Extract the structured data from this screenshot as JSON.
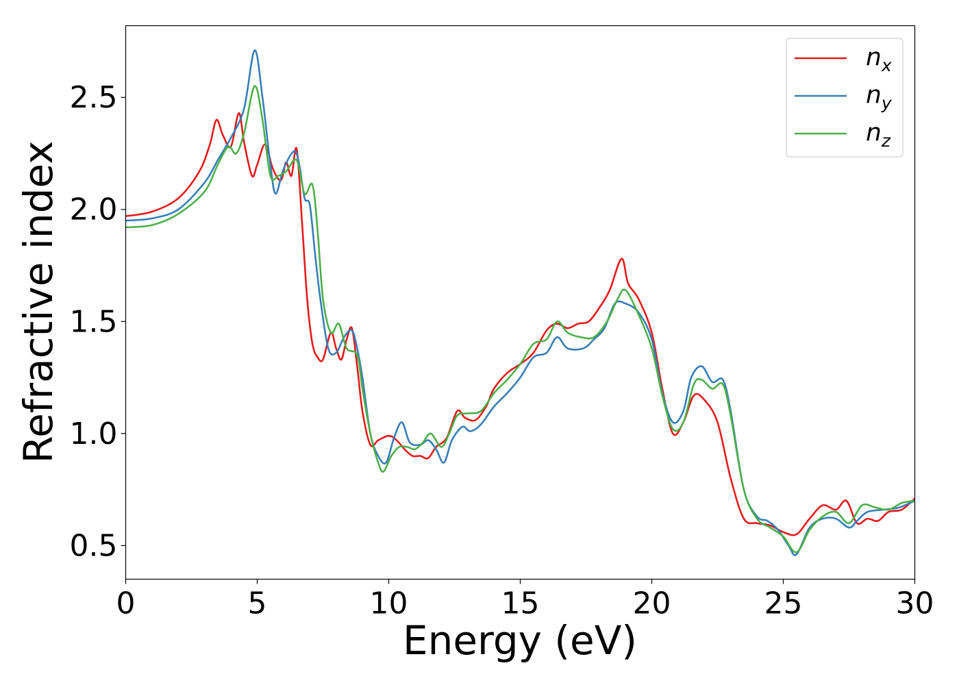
{
  "chart_data": {
    "type": "line",
    "title": "",
    "xlabel": "Energy (eV)",
    "ylabel": "Refractive index",
    "xlim": [
      0,
      30
    ],
    "ylim": [
      0.35,
      2.82
    ],
    "xticks": [
      0,
      5,
      10,
      15,
      20,
      25,
      30
    ],
    "yticks": [
      0.5,
      1.0,
      1.5,
      2.0,
      2.5
    ],
    "xtick_labels": [
      "0",
      "5",
      "10",
      "15",
      "20",
      "25",
      "30"
    ],
    "ytick_labels": [
      "0.5",
      "1.0",
      "1.5",
      "2.0",
      "2.5"
    ],
    "grid": false,
    "legend_position": "top-right",
    "series": [
      {
        "name": "n",
        "subscript": "x",
        "color": "#e41a1c",
        "points": [
          [
            0,
            1.97
          ],
          [
            1,
            1.99
          ],
          [
            2,
            2.05
          ],
          [
            2.8,
            2.17
          ],
          [
            3.2,
            2.29
          ],
          [
            3.45,
            2.4
          ],
          [
            3.7,
            2.33
          ],
          [
            4.0,
            2.28
          ],
          [
            4.3,
            2.43
          ],
          [
            4.5,
            2.3
          ],
          [
            4.8,
            2.15
          ],
          [
            5.0,
            2.2
          ],
          [
            5.3,
            2.29
          ],
          [
            5.6,
            2.18
          ],
          [
            5.9,
            2.13
          ],
          [
            6.1,
            2.21
          ],
          [
            6.3,
            2.15
          ],
          [
            6.5,
            2.27
          ],
          [
            6.7,
            1.95
          ],
          [
            6.9,
            1.6
          ],
          [
            7.1,
            1.4
          ],
          [
            7.3,
            1.34
          ],
          [
            7.5,
            1.33
          ],
          [
            7.8,
            1.45
          ],
          [
            8.0,
            1.38
          ],
          [
            8.2,
            1.33
          ],
          [
            8.4,
            1.42
          ],
          [
            8.6,
            1.47
          ],
          [
            8.8,
            1.3
          ],
          [
            9.0,
            1.1
          ],
          [
            9.3,
            0.95
          ],
          [
            9.6,
            0.97
          ],
          [
            10.0,
            0.99
          ],
          [
            10.3,
            0.97
          ],
          [
            10.6,
            0.93
          ],
          [
            10.9,
            0.9
          ],
          [
            11.2,
            0.9
          ],
          [
            11.5,
            0.89
          ],
          [
            11.8,
            0.94
          ],
          [
            12.2,
            0.98
          ],
          [
            12.6,
            1.1
          ],
          [
            12.9,
            1.07
          ],
          [
            13.3,
            1.06
          ],
          [
            13.7,
            1.12
          ],
          [
            14.0,
            1.2
          ],
          [
            14.5,
            1.27
          ],
          [
            15.0,
            1.31
          ],
          [
            15.5,
            1.36
          ],
          [
            16.0,
            1.46
          ],
          [
            16.4,
            1.49
          ],
          [
            16.8,
            1.47
          ],
          [
            17.2,
            1.49
          ],
          [
            17.6,
            1.5
          ],
          [
            18.0,
            1.56
          ],
          [
            18.4,
            1.64
          ],
          [
            18.85,
            1.78
          ],
          [
            19.1,
            1.67
          ],
          [
            19.5,
            1.6
          ],
          [
            20.0,
            1.45
          ],
          [
            20.4,
            1.2
          ],
          [
            20.8,
            1.0
          ],
          [
            21.2,
            1.05
          ],
          [
            21.6,
            1.17
          ],
          [
            22.0,
            1.15
          ],
          [
            22.5,
            1.05
          ],
          [
            23.0,
            0.8
          ],
          [
            23.5,
            0.62
          ],
          [
            24.0,
            0.6
          ],
          [
            24.5,
            0.59
          ],
          [
            25.0,
            0.56
          ],
          [
            25.5,
            0.55
          ],
          [
            26.0,
            0.62
          ],
          [
            26.5,
            0.68
          ],
          [
            27.0,
            0.66
          ],
          [
            27.4,
            0.7
          ],
          [
            27.8,
            0.6
          ],
          [
            28.2,
            0.62
          ],
          [
            28.6,
            0.61
          ],
          [
            29.0,
            0.65
          ],
          [
            29.5,
            0.66
          ],
          [
            30.0,
            0.71
          ]
        ]
      },
      {
        "name": "n",
        "subscript": "y",
        "color": "#377eb8",
        "points": [
          [
            0,
            1.95
          ],
          [
            1,
            1.96
          ],
          [
            2,
            2.0
          ],
          [
            3.0,
            2.12
          ],
          [
            3.5,
            2.22
          ],
          [
            4.0,
            2.32
          ],
          [
            4.5,
            2.45
          ],
          [
            4.9,
            2.71
          ],
          [
            5.2,
            2.5
          ],
          [
            5.5,
            2.2
          ],
          [
            5.7,
            2.07
          ],
          [
            6.0,
            2.18
          ],
          [
            6.4,
            2.26
          ],
          [
            6.6,
            2.2
          ],
          [
            6.8,
            2.05
          ],
          [
            7.0,
            2.02
          ],
          [
            7.2,
            1.8
          ],
          [
            7.4,
            1.6
          ],
          [
            7.7,
            1.38
          ],
          [
            8.0,
            1.36
          ],
          [
            8.3,
            1.43
          ],
          [
            8.6,
            1.46
          ],
          [
            8.8,
            1.38
          ],
          [
            9.0,
            1.25
          ],
          [
            9.3,
            1.0
          ],
          [
            9.6,
            0.9
          ],
          [
            9.9,
            0.87
          ],
          [
            10.2,
            0.98
          ],
          [
            10.5,
            1.05
          ],
          [
            10.8,
            0.96
          ],
          [
            11.2,
            0.95
          ],
          [
            11.5,
            0.97
          ],
          [
            11.8,
            0.93
          ],
          [
            12.1,
            0.87
          ],
          [
            12.4,
            0.97
          ],
          [
            12.8,
            1.03
          ],
          [
            13.1,
            1.01
          ],
          [
            13.5,
            1.04
          ],
          [
            14.0,
            1.12
          ],
          [
            14.5,
            1.18
          ],
          [
            15.0,
            1.25
          ],
          [
            15.5,
            1.34
          ],
          [
            16.0,
            1.36
          ],
          [
            16.4,
            1.43
          ],
          [
            16.8,
            1.38
          ],
          [
            17.4,
            1.38
          ],
          [
            17.8,
            1.42
          ],
          [
            18.2,
            1.47
          ],
          [
            18.6,
            1.58
          ],
          [
            19.0,
            1.58
          ],
          [
            19.5,
            1.54
          ],
          [
            20.0,
            1.42
          ],
          [
            20.4,
            1.18
          ],
          [
            20.8,
            1.05
          ],
          [
            21.2,
            1.1
          ],
          [
            21.5,
            1.25
          ],
          [
            21.9,
            1.3
          ],
          [
            22.3,
            1.23
          ],
          [
            22.7,
            1.24
          ],
          [
            23.0,
            1.1
          ],
          [
            23.5,
            0.75
          ],
          [
            24.0,
            0.63
          ],
          [
            24.4,
            0.61
          ],
          [
            24.8,
            0.57
          ],
          [
            25.2,
            0.5
          ],
          [
            25.5,
            0.46
          ],
          [
            26.0,
            0.58
          ],
          [
            26.5,
            0.62
          ],
          [
            27.0,
            0.62
          ],
          [
            27.5,
            0.58
          ],
          [
            27.8,
            0.61
          ],
          [
            28.2,
            0.65
          ],
          [
            28.8,
            0.66
          ],
          [
            29.4,
            0.67
          ],
          [
            30.0,
            0.7
          ]
        ]
      },
      {
        "name": "n",
        "subscript": "z",
        "color": "#4daf4a",
        "points": [
          [
            0,
            1.92
          ],
          [
            1,
            1.93
          ],
          [
            2,
            1.98
          ],
          [
            3.0,
            2.08
          ],
          [
            3.5,
            2.2
          ],
          [
            3.9,
            2.28
          ],
          [
            4.2,
            2.25
          ],
          [
            4.5,
            2.34
          ],
          [
            4.9,
            2.55
          ],
          [
            5.2,
            2.4
          ],
          [
            5.5,
            2.15
          ],
          [
            5.8,
            2.15
          ],
          [
            6.1,
            2.17
          ],
          [
            6.5,
            2.22
          ],
          [
            6.8,
            2.07
          ],
          [
            7.1,
            2.11
          ],
          [
            7.3,
            1.9
          ],
          [
            7.5,
            1.6
          ],
          [
            7.8,
            1.45
          ],
          [
            8.1,
            1.49
          ],
          [
            8.4,
            1.38
          ],
          [
            8.8,
            1.35
          ],
          [
            9.0,
            1.2
          ],
          [
            9.3,
            1.0
          ],
          [
            9.6,
            0.87
          ],
          [
            9.8,
            0.83
          ],
          [
            10.1,
            0.9
          ],
          [
            10.4,
            0.94
          ],
          [
            10.7,
            0.94
          ],
          [
            11.0,
            0.93
          ],
          [
            11.3,
            0.96
          ],
          [
            11.6,
            1.0
          ],
          [
            12.0,
            0.94
          ],
          [
            12.3,
            1.0
          ],
          [
            12.6,
            1.08
          ],
          [
            13.0,
            1.09
          ],
          [
            13.5,
            1.1
          ],
          [
            14.0,
            1.18
          ],
          [
            14.5,
            1.24
          ],
          [
            15.0,
            1.31
          ],
          [
            15.5,
            1.4
          ],
          [
            16.0,
            1.42
          ],
          [
            16.4,
            1.5
          ],
          [
            16.8,
            1.45
          ],
          [
            17.3,
            1.43
          ],
          [
            17.8,
            1.43
          ],
          [
            18.3,
            1.5
          ],
          [
            18.7,
            1.6
          ],
          [
            19.0,
            1.64
          ],
          [
            19.5,
            1.53
          ],
          [
            20.0,
            1.38
          ],
          [
            20.4,
            1.17
          ],
          [
            20.8,
            1.02
          ],
          [
            21.2,
            1.05
          ],
          [
            21.6,
            1.22
          ],
          [
            21.9,
            1.24
          ],
          [
            22.3,
            1.2
          ],
          [
            22.7,
            1.22
          ],
          [
            23.0,
            1.08
          ],
          [
            23.5,
            0.75
          ],
          [
            24.0,
            0.62
          ],
          [
            24.5,
            0.58
          ],
          [
            25.0,
            0.54
          ],
          [
            25.5,
            0.47
          ],
          [
            26.0,
            0.57
          ],
          [
            26.5,
            0.63
          ],
          [
            27.0,
            0.65
          ],
          [
            27.5,
            0.6
          ],
          [
            28.0,
            0.68
          ],
          [
            28.5,
            0.67
          ],
          [
            29.0,
            0.66
          ],
          [
            29.5,
            0.69
          ],
          [
            30.0,
            0.7
          ]
        ]
      }
    ]
  }
}
